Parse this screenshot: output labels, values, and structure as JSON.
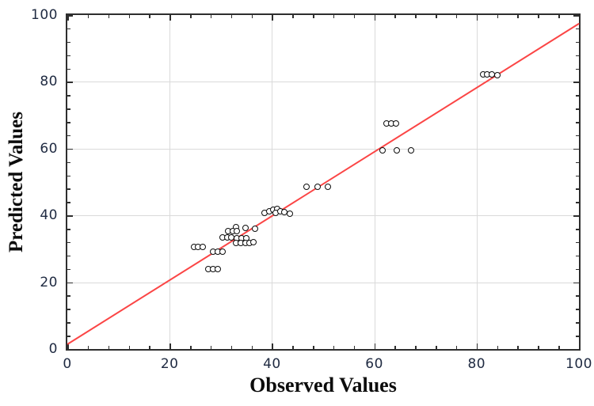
{
  "chart_data": {
    "type": "scatter",
    "title": "",
    "xlabel": "Observed Values",
    "ylabel": "Predicted Values",
    "xlim": [
      0,
      100
    ],
    "ylim": [
      0,
      100
    ],
    "x_major_ticks": [
      0,
      20,
      40,
      60,
      80,
      100
    ],
    "y_major_ticks": [
      0,
      20,
      40,
      60,
      80,
      100
    ],
    "minor_tick_step": 4,
    "grid": true,
    "legend": "none",
    "marker": {
      "shape": "open-circle",
      "color": "#0d0d0d",
      "fill": "none"
    },
    "fit_line": {
      "x1": 0,
      "y1": 1.5,
      "x2": 100,
      "y2": 97.5
    },
    "points": [
      [
        81.3,
        82.3
      ],
      [
        82.1,
        82.3
      ],
      [
        82.9,
        82.3
      ],
      [
        84.0,
        82.1
      ],
      [
        62.4,
        67.6
      ],
      [
        63.3,
        67.6
      ],
      [
        64.2,
        67.6
      ],
      [
        61.6,
        59.5
      ],
      [
        64.4,
        59.5
      ],
      [
        67.2,
        59.5
      ],
      [
        46.7,
        48.5
      ],
      [
        48.9,
        48.5
      ],
      [
        51.0,
        48.5
      ],
      [
        38.6,
        40.8
      ],
      [
        39.4,
        41.3
      ],
      [
        40.2,
        41.8
      ],
      [
        41.0,
        42.0
      ],
      [
        40.7,
        40.8
      ],
      [
        41.6,
        41.3
      ],
      [
        42.4,
        40.9
      ],
      [
        43.5,
        40.6
      ],
      [
        32.9,
        36.6
      ],
      [
        34.9,
        36.3
      ],
      [
        36.7,
        36.1
      ],
      [
        31.5,
        35.2
      ],
      [
        32.3,
        35.2
      ],
      [
        33.1,
        35.2
      ],
      [
        30.3,
        33.5
      ],
      [
        31.2,
        33.4
      ],
      [
        32.1,
        33.4
      ],
      [
        33.2,
        33.2
      ],
      [
        34.1,
        33.2
      ],
      [
        35.0,
        33.2
      ],
      [
        33.0,
        31.8
      ],
      [
        33.9,
        31.7
      ],
      [
        34.8,
        31.7
      ],
      [
        35.6,
        31.7
      ],
      [
        36.4,
        31.9
      ],
      [
        24.8,
        30.6
      ],
      [
        25.6,
        30.6
      ],
      [
        26.4,
        30.6
      ],
      [
        28.5,
        29.2
      ],
      [
        29.4,
        29.2
      ],
      [
        30.3,
        29.2
      ],
      [
        27.6,
        23.9
      ],
      [
        28.5,
        23.9
      ],
      [
        29.4,
        23.9
      ]
    ],
    "colors": {
      "fit_line": "#fb4545",
      "grid": "#dadada",
      "frame": "#2e2e2e",
      "tick_label": "#202b42",
      "axis_title": "#0c0c0c",
      "background": "#ffffff"
    }
  }
}
